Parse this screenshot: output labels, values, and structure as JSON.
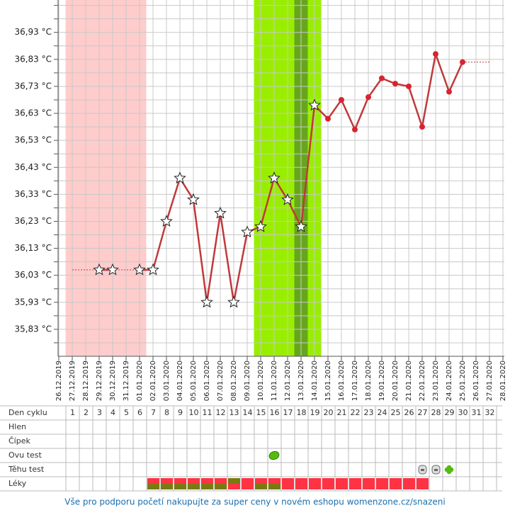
{
  "chart_data": {
    "type": "line",
    "categories": [
      "26.12.2019",
      "27.12.2019",
      "28.12.2019",
      "29.12.2019",
      "30.12.2019",
      "31.12.2019",
      "01.01.2020",
      "02.01.2020",
      "03.01.2020",
      "04.01.2020",
      "05.01.2020",
      "06.01.2020",
      "07.01.2020",
      "08.01.2020",
      "09.01.2020",
      "10.01.2020",
      "11.01.2020",
      "12.01.2020",
      "13.01.2020",
      "14.01.2020",
      "15.01.2020",
      "16.01.2020",
      "17.01.2020",
      "18.01.2020",
      "19.01.2020",
      "20.01.2020",
      "21.01.2020",
      "22.01.2020",
      "23.01.2020",
      "24.01.2020",
      "25.01.2020",
      "26.01.2020",
      "27.01.2020",
      "28.01.2020"
    ],
    "values": [
      null,
      null,
      null,
      36.05,
      36.05,
      null,
      36.05,
      36.05,
      36.23,
      36.39,
      36.31,
      35.93,
      36.26,
      35.93,
      36.19,
      36.21,
      36.39,
      36.31,
      36.21,
      36.66,
      36.61,
      36.68,
      36.57,
      36.69,
      36.76,
      36.74,
      36.73,
      36.58,
      36.85,
      36.71,
      36.82,
      null,
      null,
      null
    ],
    "markers": [
      null,
      null,
      null,
      "star",
      "star",
      null,
      "star",
      "star",
      "star",
      "star",
      "star",
      "star",
      "star",
      "star",
      "star",
      "star",
      "star",
      "star",
      "star",
      "star",
      "dot",
      "dot",
      "dot",
      "dot",
      "dot",
      "dot",
      "dot",
      "dot",
      "dot",
      "dot",
      "dot",
      null,
      null,
      null
    ],
    "color": "#c0393b",
    "ylim": [
      35.73,
      37.05
    ],
    "yticks": [
      {
        "value": 35.83,
        "label": "35,83 °C"
      },
      {
        "value": 35.93,
        "label": "35,93 °C"
      },
      {
        "value": 36.03,
        "label": "36,03 °C"
      },
      {
        "value": 36.13,
        "label": "36,13 °C"
      },
      {
        "value": 36.23,
        "label": "36,23 °C"
      },
      {
        "value": 36.33,
        "label": "36,33 °C"
      },
      {
        "value": 36.43,
        "label": "36,43 °C"
      },
      {
        "value": 36.53,
        "label": "36,53 °C"
      },
      {
        "value": 36.63,
        "label": "36,63 °C"
      },
      {
        "value": 36.73,
        "label": "36,73 °C"
      },
      {
        "value": 36.83,
        "label": "36,83 °C"
      },
      {
        "value": 36.93,
        "label": "36,93 °C"
      }
    ],
    "minor_yticks": [
      35.78,
      35.88,
      35.98,
      36.08,
      36.18,
      36.28,
      36.38,
      36.48,
      36.58,
      36.68,
      36.78,
      36.88,
      36.98,
      37.03
    ],
    "grid": true,
    "bands": [
      {
        "start": "27.12.2019",
        "end": "01.01.2020",
        "color": "#ffcccc"
      },
      {
        "start": "10.01.2020",
        "end": "14.01.2020",
        "color": "#99ee00"
      },
      {
        "start": "13.01.2020",
        "end": "13.01.2020",
        "color": "#66a61e"
      }
    ]
  },
  "table": {
    "day_label": "Den cyklu",
    "days": [
      1,
      2,
      3,
      4,
      5,
      6,
      7,
      8,
      9,
      10,
      11,
      12,
      13,
      14,
      15,
      16,
      17,
      18,
      19,
      20,
      21,
      22,
      23,
      24,
      25,
      26,
      27,
      28,
      29,
      30,
      31,
      32
    ],
    "rows": [
      "Hlen",
      "Čípek",
      "Ovu test",
      "Těhu test",
      "Léky"
    ]
  },
  "footer": "Vše pro podporu početí nakupujte za super ceny v novém eshopu womenzone.cz/snazeni"
}
